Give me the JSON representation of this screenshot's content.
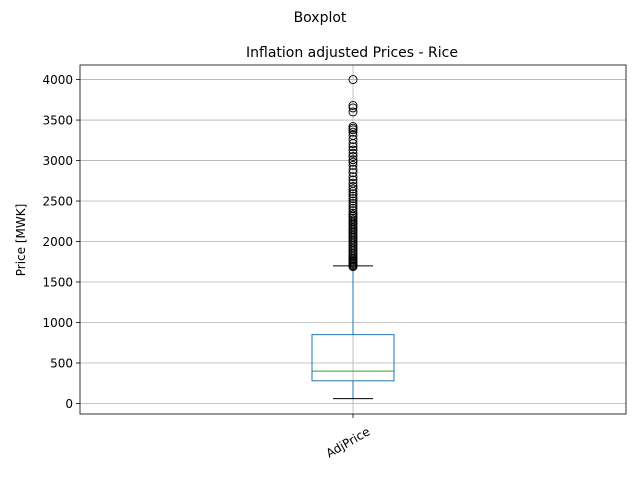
{
  "chart_data": {
    "type": "box",
    "suptitle": "Boxplot",
    "title": "Inflation adjusted Prices - Rice",
    "xlabel": "",
    "ylabel": "Price [MWK]",
    "categories": [
      "AdjPrice"
    ],
    "ylim": [
      -130,
      4180
    ],
    "yticks": [
      0,
      500,
      1000,
      1500,
      2000,
      2500,
      3000,
      3500,
      4000
    ],
    "grid": true,
    "box": {
      "whisker_low": 60,
      "q1": 280,
      "median": 400,
      "q3": 850,
      "whisker_high": 1700,
      "outliers": [
        1690,
        1700,
        1715,
        1730,
        1745,
        1760,
        1775,
        1790,
        1810,
        1830,
        1850,
        1870,
        1890,
        1910,
        1930,
        1950,
        1970,
        1990,
        2010,
        2030,
        2050,
        2070,
        2090,
        2110,
        2130,
        2150,
        2170,
        2190,
        2210,
        2230,
        2250,
        2270,
        2290,
        2310,
        2330,
        2350,
        2380,
        2410,
        2440,
        2470,
        2500,
        2530,
        2560,
        2590,
        2620,
        2650,
        2680,
        2720,
        2760,
        2800,
        2850,
        2890,
        2940,
        2980,
        3010,
        3050,
        3090,
        3130,
        3170,
        3210,
        3260,
        3310,
        3350,
        3380,
        3400,
        3420,
        3600,
        3650,
        3680,
        4000
      ]
    },
    "colors": {
      "box": "#1f77b4",
      "median": "#2ca02c",
      "whisker_cap": "#000000",
      "outlier": "#000000",
      "grid": "#b0b0b0"
    }
  }
}
